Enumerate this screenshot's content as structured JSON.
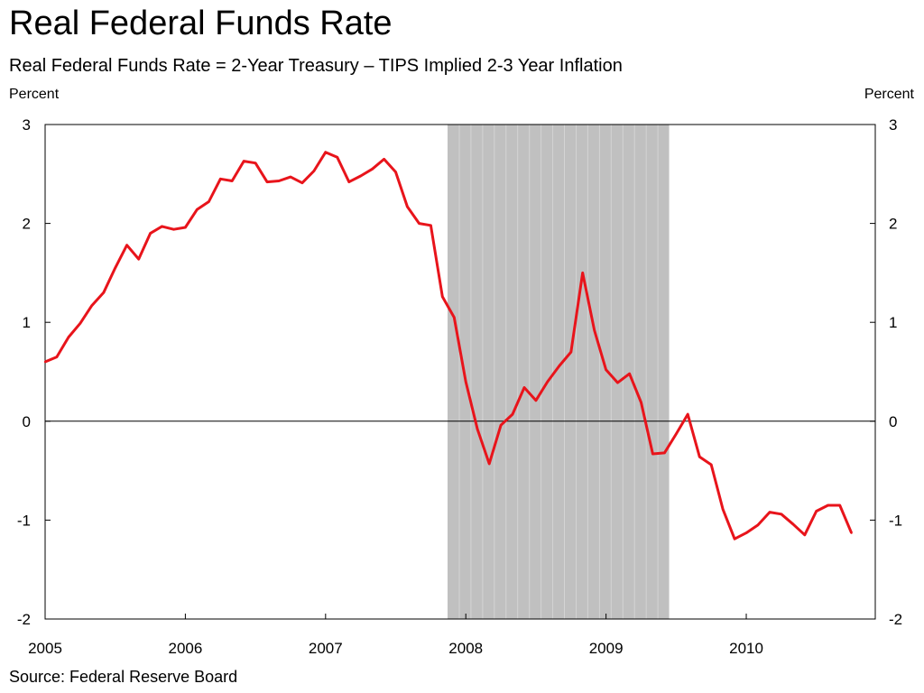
{
  "chart_data": {
    "type": "line",
    "title": "Real Federal Funds Rate",
    "subtitle": "Real Federal Funds Rate = 2-Year Treasury – TIPS Implied 2-3 Year Inflation",
    "ylabel_left": "Percent",
    "ylabel_right": "Percent",
    "xlabel": "",
    "source": "Source: Federal Reserve Board",
    "xlim": [
      2005,
      2010.92
    ],
    "ylim": [
      -2,
      3
    ],
    "y_ticks": [
      -2,
      -1,
      0,
      1,
      2,
      3
    ],
    "x_ticks": [
      2005,
      2006,
      2007,
      2008,
      2009,
      2010
    ],
    "x_tick_labels": [
      "2005",
      "2006",
      "2007",
      "2008",
      "2009",
      "2010"
    ],
    "grid": false,
    "zero_line": true,
    "line_color": "#e8141b",
    "shading_color": "#c0c0c0",
    "recession": {
      "start": 2007.87,
      "end": 2009.45
    },
    "series": [
      {
        "x": [
          2005.0,
          2005.083,
          2005.167,
          2005.25,
          2005.333,
          2005.417,
          2005.5,
          2005.583,
          2005.667,
          2005.75,
          2005.833,
          2005.917,
          2006.0,
          2006.083,
          2006.167,
          2006.25,
          2006.333,
          2006.417,
          2006.5,
          2006.583,
          2006.667,
          2006.75,
          2006.833,
          2006.917,
          2007.0,
          2007.083,
          2007.167,
          2007.25,
          2007.333,
          2007.417,
          2007.5,
          2007.583,
          2007.667,
          2007.75,
          2007.833,
          2007.917,
          2008.0,
          2008.083,
          2008.167,
          2008.25,
          2008.333,
          2008.417,
          2008.5,
          2008.583,
          2008.667,
          2008.75,
          2008.833,
          2008.917,
          2009.0,
          2009.083,
          2009.167,
          2009.25,
          2009.333,
          2009.417,
          2009.5,
          2009.583,
          2009.667,
          2009.75,
          2009.833,
          2009.917,
          2010.0,
          2010.083,
          2010.167,
          2010.25,
          2010.333,
          2010.417,
          2010.5,
          2010.583,
          2010.667,
          2010.75
        ],
        "values": [
          0.6,
          0.65,
          0.85,
          0.99,
          1.17,
          1.3,
          1.55,
          1.78,
          1.64,
          1.9,
          1.97,
          1.94,
          1.96,
          2.14,
          2.22,
          2.45,
          2.43,
          2.63,
          2.61,
          2.42,
          2.43,
          2.47,
          2.41,
          2.53,
          2.72,
          2.67,
          2.42,
          2.48,
          2.55,
          2.65,
          2.52,
          2.17,
          2.0,
          1.98,
          1.26,
          1.05,
          0.4,
          -0.08,
          -0.43,
          -0.04,
          0.07,
          0.34,
          0.21,
          0.4,
          0.56,
          0.7,
          1.5,
          0.92,
          0.52,
          0.39,
          0.48,
          0.19,
          -0.33,
          -0.32,
          -0.13,
          0.07,
          -0.36,
          -0.44,
          -0.89,
          -1.19,
          -1.13,
          -1.05,
          -0.92,
          -0.94,
          -1.04,
          -1.15,
          -0.91,
          -0.85,
          -0.85,
          -1.13
        ]
      }
    ]
  }
}
